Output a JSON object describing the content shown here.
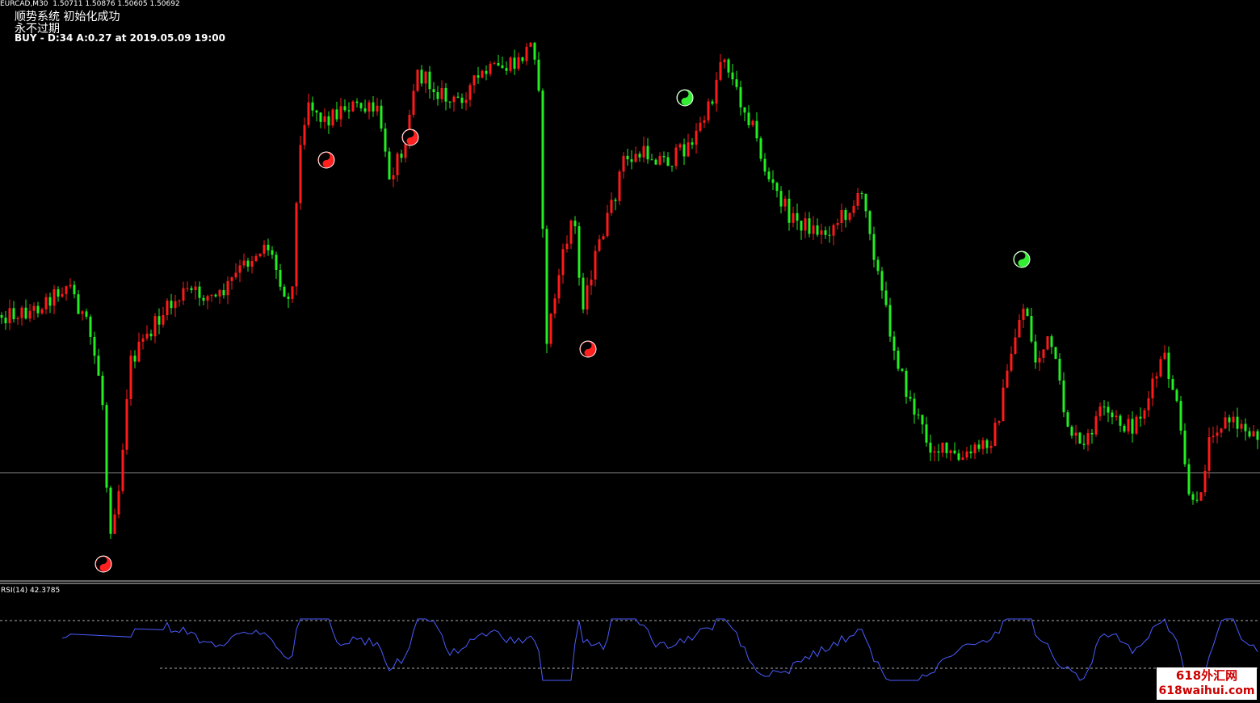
{
  "header": {
    "symbol_line": "EURCAD,M30  1.50711 1.50876 1.50605 1.50692",
    "status": "顺势系统 初始化成功",
    "expiry": "永不过期",
    "signal": "BUY - D:34 A:0.27 at 2019.05.09 19:00"
  },
  "indicator": {
    "label": "RSI(14) 42.3785"
  },
  "watermark": {
    "title": "618外汇网",
    "url": "618waihui.com"
  }
}
